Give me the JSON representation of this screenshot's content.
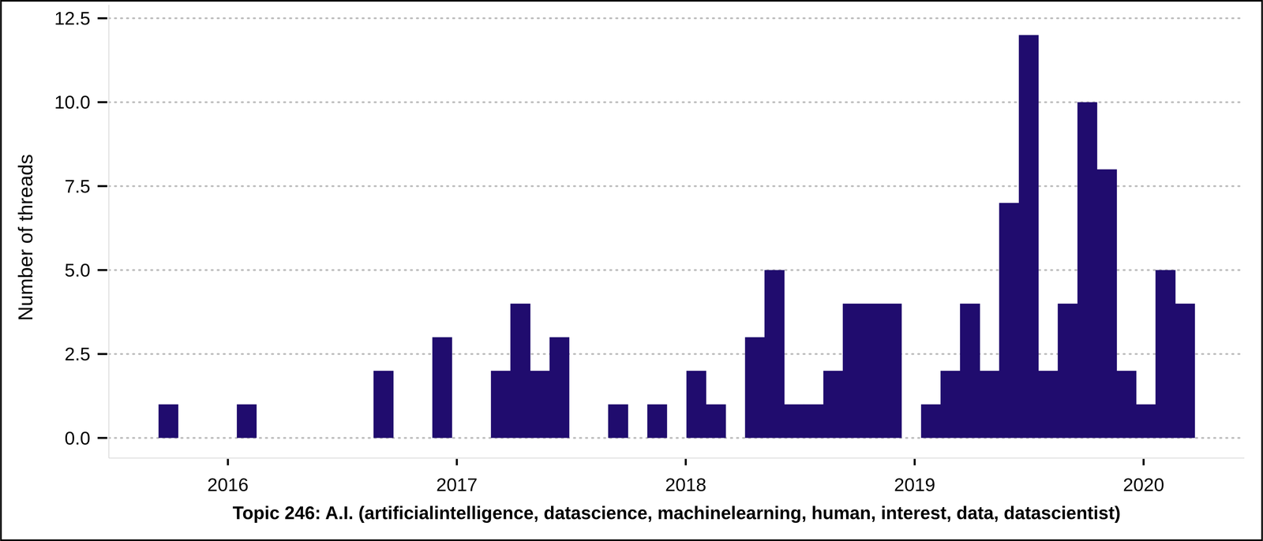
{
  "chart_data": {
    "type": "histogram",
    "title": "Topic 246: A.I. (artificialintelligence, datascience, machinelearning, human, interest, data, datascientist)",
    "y_label": "Number of threads",
    "bins": [
      2015.697,
      2015.782,
      2015.868,
      2015.953,
      2016.039,
      2016.124,
      2016.209,
      2016.295,
      2016.38,
      2016.466,
      2016.551,
      2016.636,
      2016.722,
      2016.807,
      2016.893,
      2016.978,
      2017.063,
      2017.149,
      2017.234,
      2017.32,
      2017.405,
      2017.49,
      2017.576,
      2017.661,
      2017.747,
      2017.832,
      2017.917,
      2018.003,
      2018.088,
      2018.174,
      2018.259,
      2018.344,
      2018.43,
      2018.515,
      2018.601,
      2018.686,
      2018.771,
      2018.857,
      2018.942,
      2019.028,
      2019.113,
      2019.198,
      2019.284,
      2019.369,
      2019.455,
      2019.54,
      2019.625,
      2019.711,
      2019.796,
      2019.882,
      2019.967,
      2020.052,
      2020.138,
      2020.223
    ],
    "values": [
      1,
      0,
      0,
      0,
      1,
      0,
      0,
      0,
      0,
      0,
      0,
      2,
      0,
      0,
      3,
      0,
      0,
      2,
      4,
      2,
      3,
      0,
      0,
      1,
      0,
      1,
      0,
      2,
      1,
      0,
      3,
      5,
      1,
      1,
      2,
      4,
      4,
      4,
      0,
      1,
      2,
      4,
      2,
      7,
      12,
      2,
      4,
      10,
      8,
      2,
      1,
      5,
      4
    ],
    "color": "#200c6e",
    "xlim": [
      2015.48,
      2020.44
    ],
    "ylim": [
      -0.6,
      12.9
    ],
    "xticks": [
      2016,
      2017,
      2018,
      2019,
      2020
    ],
    "yticks": [
      {
        "value": 0,
        "label": "0.0"
      },
      2.5,
      {
        "value": 5,
        "label": "5.0"
      },
      7.5,
      {
        "value": 10,
        "label": "10.0"
      },
      12.5
    ],
    "grid": true
  }
}
